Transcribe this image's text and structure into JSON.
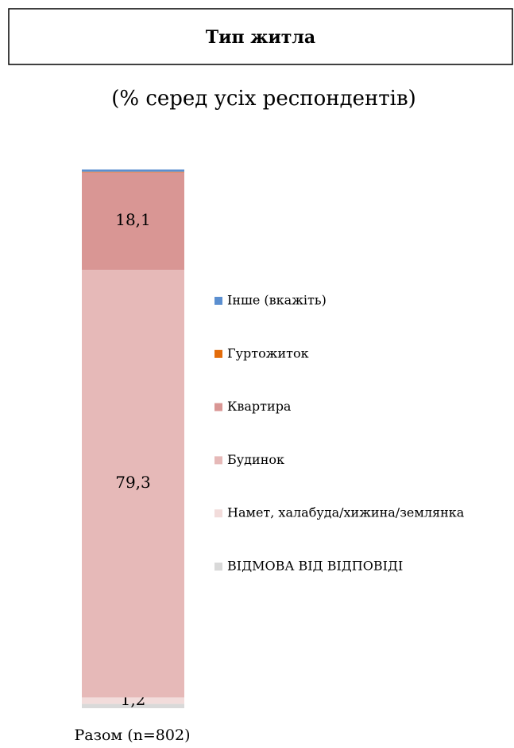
{
  "chart_data": {
    "type": "stacked_bar",
    "title": "Тип житла",
    "subtitle": "(% серед усіх респондентів)",
    "categories": [
      "Разом (n=802)"
    ],
    "series": [
      {
        "name": "ВІДМОВА ВІД ВІДПОВІДІ",
        "color": "#d9d9d9",
        "values": [
          0.8
        ]
      },
      {
        "name": "Намет, халабуда/хижина/землянка",
        "color": "#f2dcdb",
        "values": [
          1.2
        ],
        "value_labels": [
          "1,2"
        ]
      },
      {
        "name": "Будинок",
        "color": "#e6b9b8",
        "values": [
          79.3
        ],
        "value_labels": [
          "79,3"
        ]
      },
      {
        "name": "Квартира",
        "color": "#d99694",
        "values": [
          18.1
        ],
        "value_labels": [
          "18,1"
        ]
      },
      {
        "name": "Гуртожиток",
        "color": "#e36c0a",
        "values": [
          0.1
        ]
      },
      {
        "name": "Інше (вкажіть)",
        "color": "#5b8fd0",
        "values": [
          0.4
        ]
      }
    ]
  }
}
